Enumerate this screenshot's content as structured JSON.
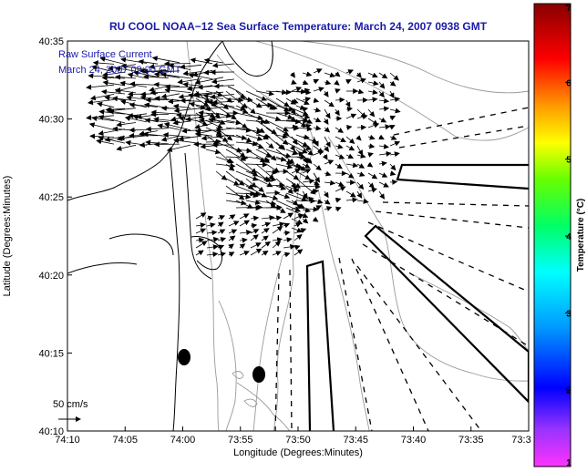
{
  "title": "RU COOL  NOAA−12  Sea Surface Temperature:  March 24, 2007 0938 GMT",
  "legend": {
    "line1": "Raw Surface Current",
    "line2": "March 24, 2007 09:00 GMT"
  },
  "scale_label": "50 cm/s",
  "axes": {
    "xlabel": "Longitude (Degrees:Minutes)",
    "ylabel": "Latitude (Degrees:Minutes)",
    "xticks": [
      "74:10",
      "74:05",
      "74:00",
      "73:55",
      "73:50",
      "73:45",
      "73:40",
      "73:35",
      "73:3"
    ],
    "yticks": [
      "40:35",
      "40:30",
      "40:25",
      "40:20",
      "40:15",
      "40:10"
    ]
  },
  "colorbar": {
    "label": "Temperature (°C)",
    "ticks": [
      "7",
      "6",
      "5",
      "4",
      "3",
      "2",
      "1"
    ],
    "range": [
      1,
      7
    ]
  },
  "colors": {
    "title": "#1a1aa8",
    "legend_text": "#1a1aa8",
    "coast": "#000000",
    "bathymetry": "#999999",
    "vectors": "#000000"
  }
}
